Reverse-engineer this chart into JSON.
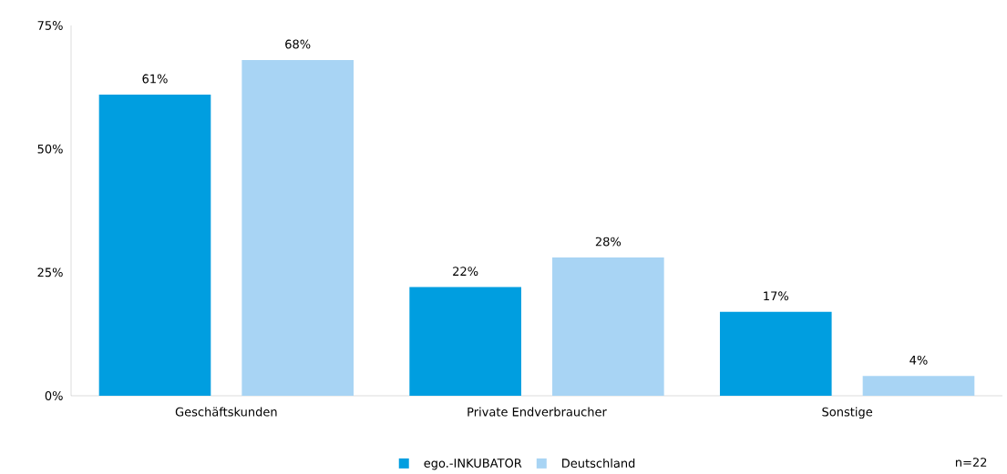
{
  "chart_data": {
    "type": "bar",
    "categories": [
      "Geschäftskunden",
      "Private Endverbraucher",
      "Sonstige"
    ],
    "series": [
      {
        "name": "ego.-INKUBATOR",
        "color": "#009ee0",
        "values": [
          61,
          22,
          17
        ],
        "value_labels": [
          "61%",
          "22%",
          "17%"
        ]
      },
      {
        "name": "Deutschland",
        "color": "#a8d4f4",
        "values": [
          68,
          28,
          4
        ],
        "value_labels": [
          "68%",
          "28%",
          "4%"
        ]
      }
    ],
    "ylim": [
      0,
      75
    ],
    "yticks": [
      {
        "value": 0,
        "label": "0%"
      },
      {
        "value": 25,
        "label": "25%"
      },
      {
        "value": 50,
        "label": "50%"
      },
      {
        "value": 75,
        "label": "75%"
      }
    ],
    "grid": false,
    "legend": "bottom",
    "annotations": [
      "n=22"
    ]
  }
}
